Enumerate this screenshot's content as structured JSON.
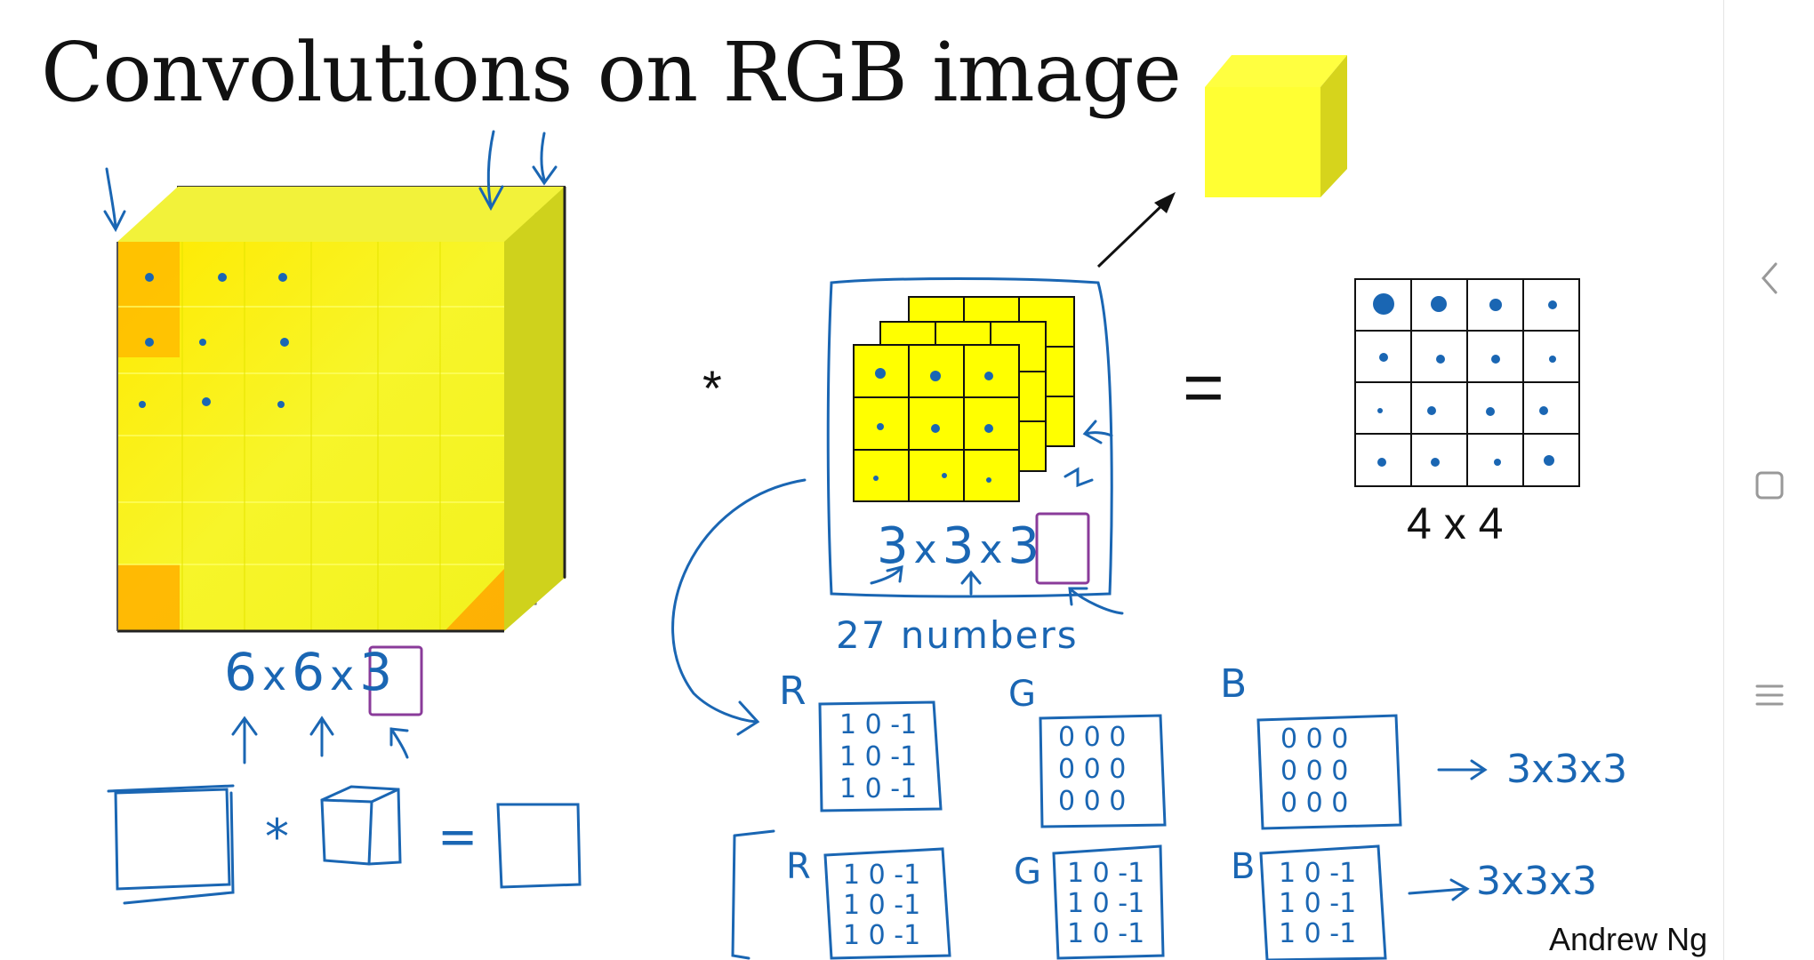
{
  "slide": {
    "title": "Convolutions on RGB image",
    "conv_operator": "*",
    "equals_operator": "=",
    "output_dims": "4 x 4",
    "author": "Andrew Ng"
  },
  "annotations": {
    "input_dims_a": "6",
    "input_x1": "x",
    "input_dims_b": "6",
    "input_x2": "x",
    "input_channels": "3",
    "filter_dims_a": "3",
    "filter_x1": "x",
    "filter_dims_b": "3",
    "filter_x2": "x",
    "filter_channels": "3",
    "filter_param_count": "27 numbers",
    "red_channel_label": "R",
    "green_channel_label": "G",
    "blue_channel_label": "B",
    "filter_row1_red_values": [
      "1 0 -1",
      "1 0 -1",
      "1 0 -1"
    ],
    "filter_row1_green_values": [
      "0 0 0",
      "0 0 0",
      "0 0 0"
    ],
    "filter_row1_blue_values": [
      "0 0 0",
      "0 0 0",
      "0 0 0"
    ],
    "filter_row1_result": "3x3x3",
    "filter_row2_red_values": [
      "1 0 -1",
      "1 0 -1",
      "1 0 -1"
    ],
    "filter_row2_green_values": [
      "1 0 -1",
      "1 0 -1",
      "1 0 -1"
    ],
    "filter_row2_blue_values": [
      "1 0 -1",
      "1 0 -1",
      "1 0 -1"
    ],
    "filter_row2_result": "3x3x3",
    "bottom_conv_operator": "*",
    "bottom_equals_operator": "="
  },
  "colors": {
    "cube_yellow": "#f5f522",
    "cube_shade": "#cfcf1a",
    "cube_orange": "#ffb400",
    "ink_blue": "#1a66b3",
    "ink_purple": "#8a3b9a"
  },
  "sidebar": {
    "back_icon": "chevron-left-icon",
    "overview_icon": "square-icon",
    "menu_icon": "hamburger-menu-icon"
  }
}
